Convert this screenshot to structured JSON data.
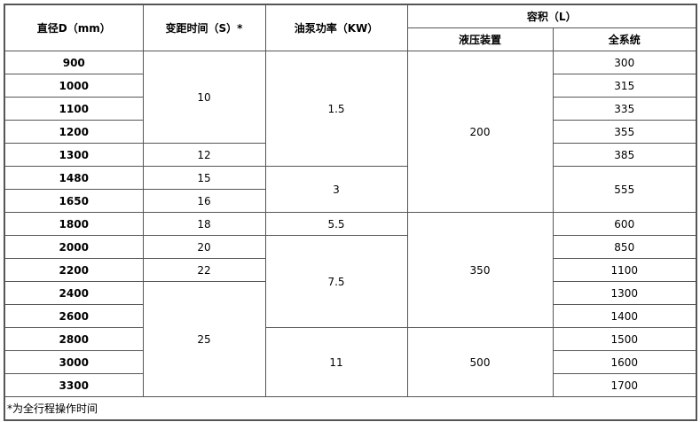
{
  "headers": {
    "diameter": "直径D（mm）",
    "pitch_time": "变距时间（S）*",
    "pump_power": "油泵功率（KW）",
    "volume": "容积（L）",
    "hydraulic": "液压装置",
    "full_system": "全系统"
  },
  "diameters": [
    "900",
    "1000",
    "1100",
    "1200",
    "1300",
    "1480",
    "1650",
    "1800",
    "2000",
    "2200",
    "2400",
    "2600",
    "2800",
    "3000",
    "3300"
  ],
  "pitch_time": [
    {
      "value": "10",
      "rows": 4
    },
    {
      "value": "12",
      "rows": 1
    },
    {
      "value": "15",
      "rows": 1
    },
    {
      "value": "16",
      "rows": 1
    },
    {
      "value": "18",
      "rows": 1
    },
    {
      "value": "20",
      "rows": 1
    },
    {
      "value": "22",
      "rows": 1
    },
    {
      "value": "25",
      "rows": 5
    }
  ],
  "pump_power": [
    {
      "value": "1.5",
      "rows": 5
    },
    {
      "value": "3",
      "rows": 2
    },
    {
      "value": "5.5",
      "rows": 1
    },
    {
      "value": "7.5",
      "rows": 4
    },
    {
      "value": "11",
      "rows": 3
    }
  ],
  "hydraulic": [
    {
      "value": "200",
      "rows": 7
    },
    {
      "value": "350",
      "rows": 5
    },
    {
      "value": "500",
      "rows": 3
    }
  ],
  "full_system": [
    {
      "value": "300",
      "rows": 1
    },
    {
      "value": "315",
      "rows": 1
    },
    {
      "value": "335",
      "rows": 1
    },
    {
      "value": "355",
      "rows": 1
    },
    {
      "value": "385",
      "rows": 1
    },
    {
      "value": "555",
      "rows": 2
    },
    {
      "value": "600",
      "rows": 1
    },
    {
      "value": "850",
      "rows": 1
    },
    {
      "value": "1100",
      "rows": 1
    },
    {
      "value": "1300",
      "rows": 1
    },
    {
      "value": "1400",
      "rows": 1
    },
    {
      "value": "1500",
      "rows": 1
    },
    {
      "value": "1600",
      "rows": 1
    },
    {
      "value": "1700",
      "rows": 1
    }
  ],
  "footnote": "*为全行程操作时间"
}
